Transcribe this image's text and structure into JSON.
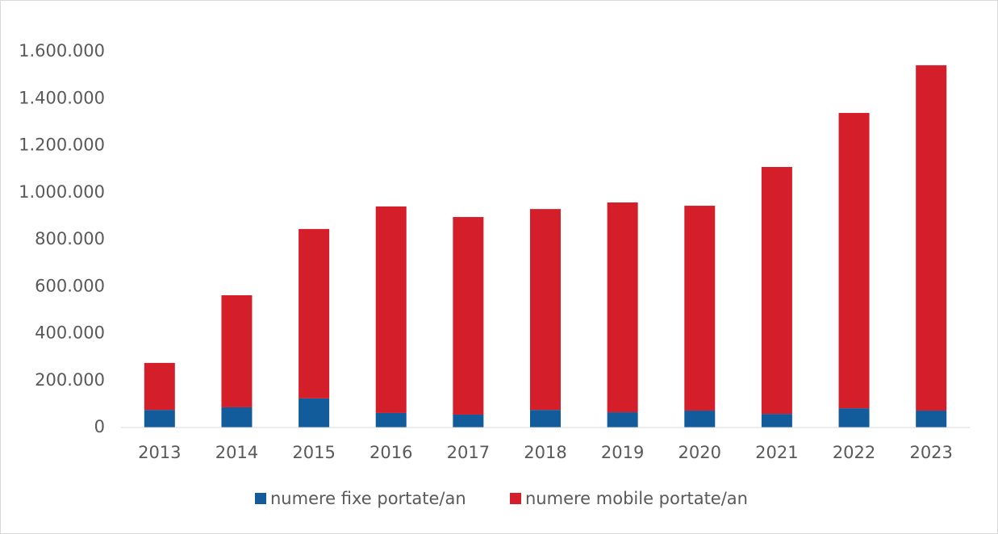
{
  "chart_data": {
    "type": "stacked_bar",
    "categories": [
      "2013",
      "2014",
      "2015",
      "2016",
      "2017",
      "2018",
      "2019",
      "2020",
      "2021",
      "2022",
      "2023"
    ],
    "series": [
      {
        "name": "numere fixe portate/an",
        "color": "#125c9c",
        "values": [
          75000,
          86000,
          124000,
          62000,
          55000,
          75000,
          65000,
          72000,
          58000,
          82000,
          72000
        ]
      },
      {
        "name": "numere mobile portate/an",
        "color": "#d41f2b",
        "values": [
          200000,
          477000,
          721000,
          879000,
          841000,
          855000,
          893000,
          872000,
          1051000,
          1257000,
          1470000
        ]
      }
    ],
    "ylim": [
      0,
      1600000
    ],
    "yticks": [
      0,
      {
        "value": 200000,
        "label": "200.000"
      },
      {
        "value": 400000,
        "label": "400.000"
      },
      {
        "value": 600000,
        "label": "600.000"
      },
      {
        "value": 800000,
        "label": "800.000"
      },
      {
        "value": 1000000,
        "label": "1.000.000"
      },
      {
        "value": 1200000,
        "label": "1.200.000"
      },
      {
        "value": 1400000,
        "label": "1.400.000"
      },
      {
        "value": 1600000,
        "label": "1.600.000"
      }
    ],
    "legend": "bottom"
  }
}
